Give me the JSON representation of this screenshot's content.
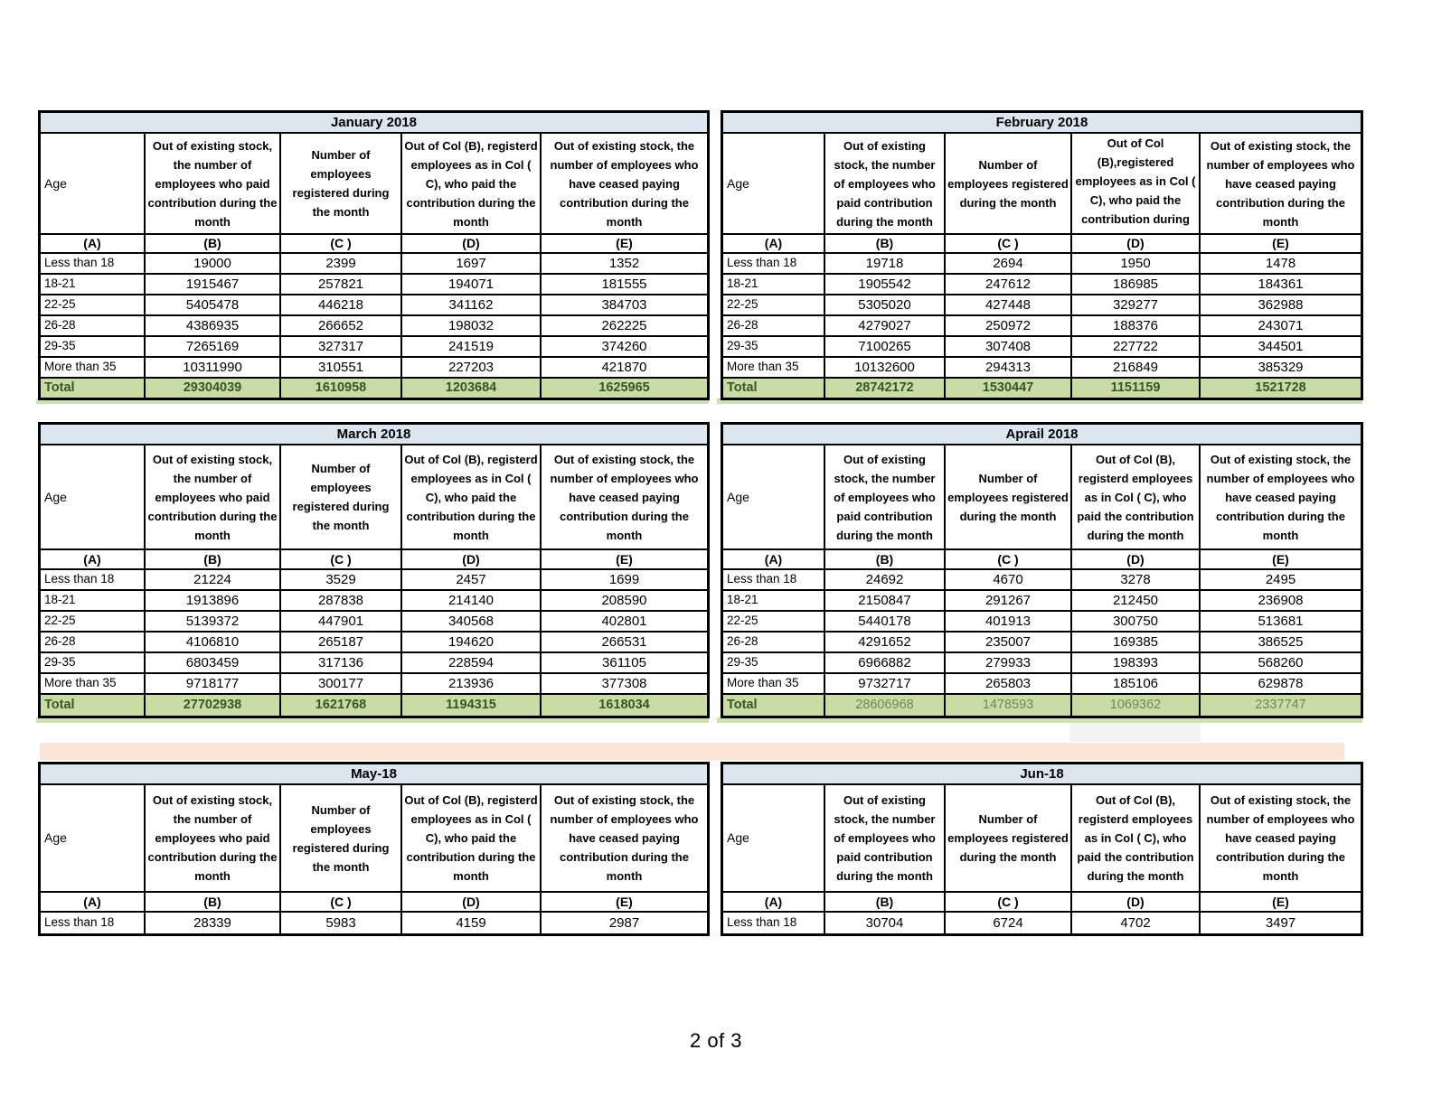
{
  "page": {
    "page_number": "2 of 3"
  },
  "colors": {
    "title_bg": "#DCE6F1",
    "total_bg": "#C9DCA6",
    "total_text": "#375623",
    "band": "#FBE5D6",
    "bleed": "#CFE0B5",
    "artifact": "#F4F4F4"
  },
  "column_letters": [
    "(A)",
    "(B)",
    "(C )",
    "(D)",
    "(E)"
  ],
  "tables": [
    {
      "title": "January 2018",
      "headers": [
        "Age",
        "Out of existing stock, the number of employees who paid contribution during the month",
        "Number of employees registered during the month",
        "Out of Col (B), registerd employees as in Col ( C), who paid the contribution during the month",
        "Out of existing stock, the number of  employees who have ceased paying contribution during the month"
      ],
      "rows": [
        {
          "age": "Less than 18",
          "values": [
            "19000",
            "2399",
            "1697",
            "1352"
          ]
        },
        {
          "age": "18-21",
          "values": [
            "1915467",
            "257821",
            "194071",
            "181555"
          ]
        },
        {
          "age": "22-25",
          "values": [
            "5405478",
            "446218",
            "341162",
            "384703"
          ]
        },
        {
          "age": "26-28",
          "values": [
            "4386935",
            "266652",
            "198032",
            "262225"
          ]
        },
        {
          "age": "29-35",
          "values": [
            "7265169",
            "327317",
            "241519",
            "374260"
          ]
        },
        {
          "age": "More than 35",
          "values": [
            "10311990",
            "310551",
            "227203",
            "421870"
          ]
        }
      ],
      "total": {
        "label": "Total",
        "values": [
          "29304039",
          "1610958",
          "1203684",
          "1625965"
        ]
      }
    },
    {
      "title": "February 2018",
      "headers": [
        "Age",
        "Out of existing stock, the number of employees who paid contribution during the month",
        "Number of employees registered during the month",
        "Out of Col (B),registered employees as in Col ( C), who paid the contribution during the month",
        "Out of existing stock, the number of  employees who have ceased paying contribution during the month"
      ],
      "rows": [
        {
          "age": "Less than 18",
          "values": [
            "19718",
            "2694",
            "1950",
            "1478"
          ]
        },
        {
          "age": "18-21",
          "values": [
            "1905542",
            "247612",
            "186985",
            "184361"
          ]
        },
        {
          "age": "22-25",
          "values": [
            "5305020",
            "427448",
            "329277",
            "362988"
          ]
        },
        {
          "age": "26-28",
          "values": [
            "4279027",
            "250972",
            "188376",
            "243071"
          ]
        },
        {
          "age": "29-35",
          "values": [
            "7100265",
            "307408",
            "227722",
            "344501"
          ]
        },
        {
          "age": "More than 35",
          "values": [
            "10132600",
            "294313",
            "216849",
            "385329"
          ]
        }
      ],
      "total": {
        "label": "Total",
        "values": [
          "28742172",
          "1530447",
          "1151159",
          "1521728"
        ]
      }
    },
    {
      "title": "March 2018",
      "headers": [
        "Age",
        "Out of existing stock, the number of employees who paid contribution during the month",
        "Number of employees registered during the month",
        "Out of Col (B), registerd employees as in Col ( C), who paid the contribution during the month",
        "Out of existing stock, the number of  employees who have ceased paying contribution during the month"
      ],
      "rows": [
        {
          "age": "Less than 18",
          "values": [
            "21224",
            "3529",
            "2457",
            "1699"
          ]
        },
        {
          "age": "18-21",
          "values": [
            "1913896",
            "287838",
            "214140",
            "208590"
          ]
        },
        {
          "age": "22-25",
          "values": [
            "5139372",
            "447901",
            "340568",
            "402801"
          ]
        },
        {
          "age": "26-28",
          "values": [
            "4106810",
            "265187",
            "194620",
            "266531"
          ]
        },
        {
          "age": "29-35",
          "values": [
            "6803459",
            "317136",
            "228594",
            "361105"
          ]
        },
        {
          "age": "More than 35",
          "values": [
            "9718177",
            "300177",
            "213936",
            "377308"
          ]
        }
      ],
      "total": {
        "label": "Total",
        "values": [
          "27702938",
          "1621768",
          "1194315",
          "1618034"
        ]
      }
    },
    {
      "title": "Aprail 2018",
      "headers": [
        "Age",
        "Out of existing stock, the number of employees who paid contribution during the month",
        "Number of employees registered during the month",
        "Out of Col (B), registerd employees as in Col ( C), who paid the contribution during the month",
        "Out of existing stock, the number of  employees who have ceased paying contribution during the month"
      ],
      "rows": [
        {
          "age": "Less than 18",
          "values": [
            "24692",
            "4670",
            "3278",
            "2495"
          ]
        },
        {
          "age": "18-21",
          "values": [
            "2150847",
            "291267",
            "212450",
            "236908"
          ]
        },
        {
          "age": "22-25",
          "values": [
            "5440178",
            "401913",
            "300750",
            "513681"
          ]
        },
        {
          "age": "26-28",
          "values": [
            "4291652",
            "235007",
            "169385",
            "386525"
          ]
        },
        {
          "age": "29-35",
          "values": [
            "6966882",
            "279933",
            "198393",
            "568260"
          ]
        },
        {
          "age": "More than 35",
          "values": [
            "9732717",
            "265803",
            "185106",
            "629878"
          ]
        }
      ],
      "total": {
        "label": "Total",
        "values": [
          "28606968",
          "1478593",
          "1069362",
          "2337747"
        ]
      },
      "total_value_color": "#6F8757"
    },
    {
      "title": "May-18",
      "headers": [
        "Age",
        "Out of existing stock, the number of employees who paid contribution during the month",
        "Number of employees registered during the month",
        "Out of Col (B), registerd employees as in Col ( C), who paid the contribution during the month",
        "Out of existing stock, the number of  employees who have ceased paying contribution during the month"
      ],
      "rows": [
        {
          "age": "Less than 18",
          "values": [
            "28339",
            "5983",
            "4159",
            "2987"
          ]
        }
      ]
    },
    {
      "title": "Jun-18",
      "headers": [
        "Age",
        "Out of existing stock, the number of employees who paid contribution during the month",
        "Number of employees registered during the month",
        "Out of Col (B), registerd employees as in Col ( C), who paid the contribution during the month",
        "Out of existing stock, the number of  employees who have ceased paying contribution during the month"
      ],
      "rows": [
        {
          "age": "Less than 18",
          "values": [
            "30704",
            "6724",
            "4702",
            "3497"
          ]
        }
      ]
    }
  ]
}
